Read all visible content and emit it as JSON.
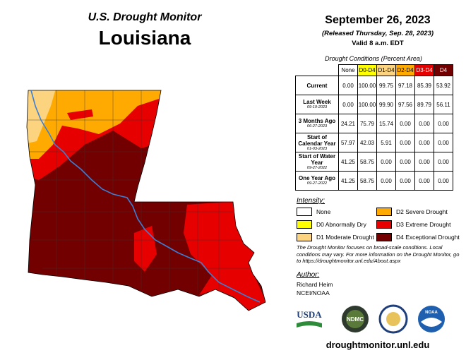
{
  "header": {
    "title": "U.S. Drought Monitor",
    "state": "Louisiana",
    "date": "September 26, 2023",
    "released": "(Released Thursday, Sep. 28, 2023)",
    "valid": "Valid 8 a.m. EDT"
  },
  "table": {
    "caption": "Drought Conditions (Percent Area)",
    "columns": [
      {
        "label": "None",
        "color": "#ffffff"
      },
      {
        "label": "D0-D4",
        "color": "#ffff00"
      },
      {
        "label": "D1-D4",
        "color": "#fcd37f"
      },
      {
        "label": "D2-D4",
        "color": "#ffaa00"
      },
      {
        "label": "D3-D4",
        "color": "#e60000"
      },
      {
        "label": "D4",
        "color": "#730000"
      }
    ],
    "rows": [
      {
        "label": "Current",
        "values": [
          "0.00",
          "100.00",
          "99.75",
          "97.18",
          "85.39",
          "53.92"
        ]
      },
      {
        "label": "Last Week",
        "date": "09-19-2023",
        "values": [
          "0.00",
          "100.00",
          "99.90",
          "97.56",
          "89.79",
          "56.11"
        ]
      },
      {
        "label": "3 Months Ago",
        "date": "06-27-2023",
        "values": [
          "24.21",
          "75.79",
          "15.74",
          "0.00",
          "0.00",
          "0.00"
        ]
      },
      {
        "label": "Start of Calendar Year",
        "date": "01-03-2023",
        "values": [
          "57.97",
          "42.03",
          "5.91",
          "0.00",
          "0.00",
          "0.00"
        ]
      },
      {
        "label": "Start of Water Year",
        "date": "09-27-2022",
        "values": [
          "41.25",
          "58.75",
          "0.00",
          "0.00",
          "0.00",
          "0.00"
        ]
      },
      {
        "label": "One Year Ago",
        "date": "09-27-2022",
        "values": [
          "41.25",
          "58.75",
          "0.00",
          "0.00",
          "0.00",
          "0.00"
        ]
      }
    ]
  },
  "legend": {
    "title": "Intensity:",
    "items": [
      {
        "label": "None",
        "color": "#ffffff"
      },
      {
        "label": "D0 Abnormally Dry",
        "color": "#ffff00"
      },
      {
        "label": "D1 Moderate Drought",
        "color": "#fcd37f"
      },
      {
        "label": "D2 Severe Drought",
        "color": "#ffaa00"
      },
      {
        "label": "D3 Extreme Drought",
        "color": "#e60000"
      },
      {
        "label": "D4 Exceptional Drought",
        "color": "#730000"
      }
    ]
  },
  "note": "The Drought Monitor focuses on broad-scale conditions. Local conditions may vary. For more information on the Drought Monitor, go to https://droughtmonitor.unl.edu/About.aspx",
  "author": {
    "label": "Author:",
    "names": [
      "Richard Heim",
      "NCEI/NOAA"
    ]
  },
  "logos": [
    "USDA",
    "NDMC",
    "NOAA"
  ],
  "url": "droughtmonitor.unl.edu"
}
